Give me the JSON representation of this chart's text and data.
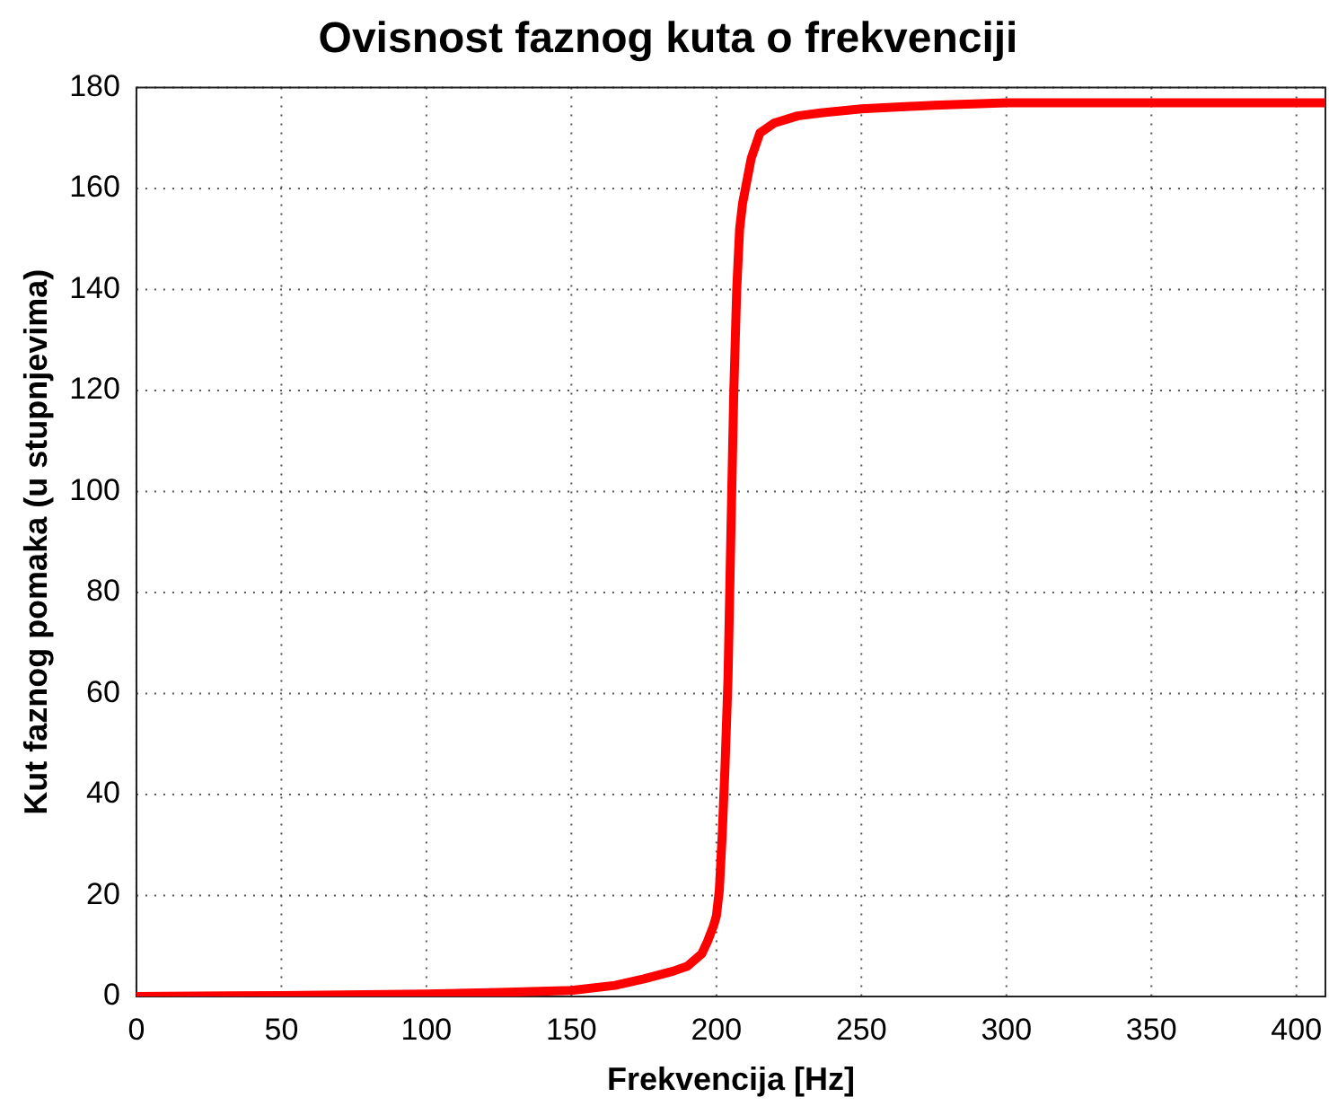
{
  "chart_data": {
    "type": "line",
    "title": "Ovisnost faznog kuta o frekvenciji",
    "xlabel": "Frekvencija [Hz]",
    "ylabel": "Kut faznog pomaka (u stupnjevima)",
    "series": [
      {
        "color": "#ff0000",
        "x": [
          0,
          50,
          100,
          125,
          150,
          165,
          175,
          185,
          190,
          195,
          197,
          199,
          200,
          201,
          202,
          203,
          204,
          205,
          206,
          207,
          208,
          209,
          210,
          212,
          215,
          220,
          228,
          236,
          250,
          275,
          300,
          350,
          410
        ],
        "values": [
          0,
          0.2,
          0.5,
          0.8,
          1.2,
          2.2,
          3.5,
          5,
          6,
          8.5,
          11,
          14,
          16,
          21,
          32,
          46,
          63,
          92,
          120,
          140,
          152,
          157,
          160,
          166,
          171,
          173,
          174.4,
          175,
          175.8,
          176.5,
          177,
          177,
          177
        ]
      }
    ],
    "xlim": [
      0,
      410
    ],
    "xticks": [
      0,
      50,
      100,
      150,
      200,
      250,
      300,
      350,
      400
    ],
    "ylim": [
      0,
      180
    ],
    "yticks": [
      0,
      20,
      40,
      60,
      80,
      100,
      120,
      140,
      160,
      180
    ],
    "grid": true,
    "line_style": "solid",
    "marker": "none",
    "legend": false
  }
}
